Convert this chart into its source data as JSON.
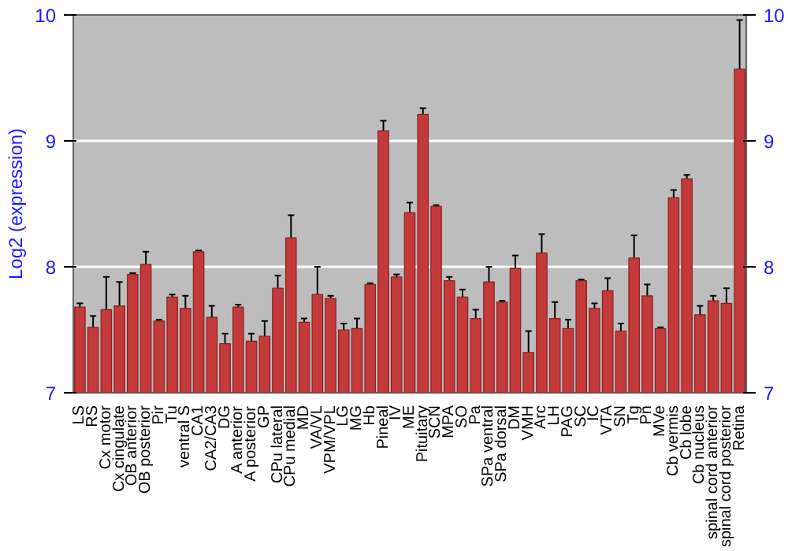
{
  "chart_data": {
    "type": "bar",
    "ylabel": "Log2 (expression)",
    "categories": [
      "LS",
      "RS",
      "Cx motor",
      "Cx cingulate",
      "OB anterior",
      "OB posterior",
      "Pir",
      "Tu",
      "ventral S",
      "CA1",
      "CA2/CA3",
      "DG",
      "A anterior",
      "A posterior",
      "GP",
      "CPu lateral",
      "CPu medial",
      "MD",
      "VA/VL",
      "VPM/VPL",
      "LG",
      "MG",
      "Hb",
      "Pineal",
      "IV",
      "ME",
      "Pituitary",
      "SCN",
      "MPA",
      "SO",
      "Pa",
      "SPa ventral",
      "SPa dorsal",
      "DM",
      "VMH",
      "Arc",
      "LH",
      "PAG",
      "SC",
      "IC",
      "VTA",
      "SN",
      "Tg",
      "Pn",
      "MVe",
      "Cb vermis",
      "Cb lobe",
      "Cb nucleus",
      "spinal cord anterior",
      "spinal cord posterior",
      "Retina"
    ],
    "values": [
      7.68,
      7.52,
      7.66,
      7.69,
      7.94,
      8.02,
      7.57,
      7.76,
      7.67,
      8.12,
      7.6,
      7.39,
      7.68,
      7.41,
      7.45,
      7.83,
      8.23,
      7.56,
      7.78,
      7.75,
      7.5,
      7.51,
      7.86,
      9.08,
      7.92,
      8.43,
      9.21,
      8.48,
      7.89,
      7.76,
      7.59,
      7.88,
      7.72,
      7.99,
      7.32,
      8.11,
      7.59,
      7.51,
      7.89,
      7.67,
      7.81,
      7.49,
      8.07,
      7.77,
      7.51,
      8.55,
      8.7,
      7.62,
      7.73,
      7.71,
      9.57
    ],
    "errors": [
      0.03,
      0.09,
      0.26,
      0.19,
      0.01,
      0.1,
      0.01,
      0.02,
      0.1,
      0.01,
      0.09,
      0.08,
      0.02,
      0.06,
      0.12,
      0.1,
      0.18,
      0.03,
      0.22,
      0.02,
      0.05,
      0.08,
      0.01,
      0.08,
      0.02,
      0.08,
      0.05,
      0.01,
      0.03,
      0.06,
      0.07,
      0.12,
      0.01,
      0.1,
      0.17,
      0.15,
      0.13,
      0.07,
      0.01,
      0.04,
      0.1,
      0.06,
      0.18,
      0.09,
      0.01,
      0.06,
      0.03,
      0.07,
      0.04,
      0.12,
      0.39
    ],
    "color": "#c43a3a",
    "ylim": [
      7,
      10
    ],
    "yticks": [
      7,
      8,
      9,
      10
    ],
    "y2lim": [
      7,
      10
    ],
    "y2ticks": [
      7,
      8,
      9,
      10
    ],
    "grid": "y"
  }
}
